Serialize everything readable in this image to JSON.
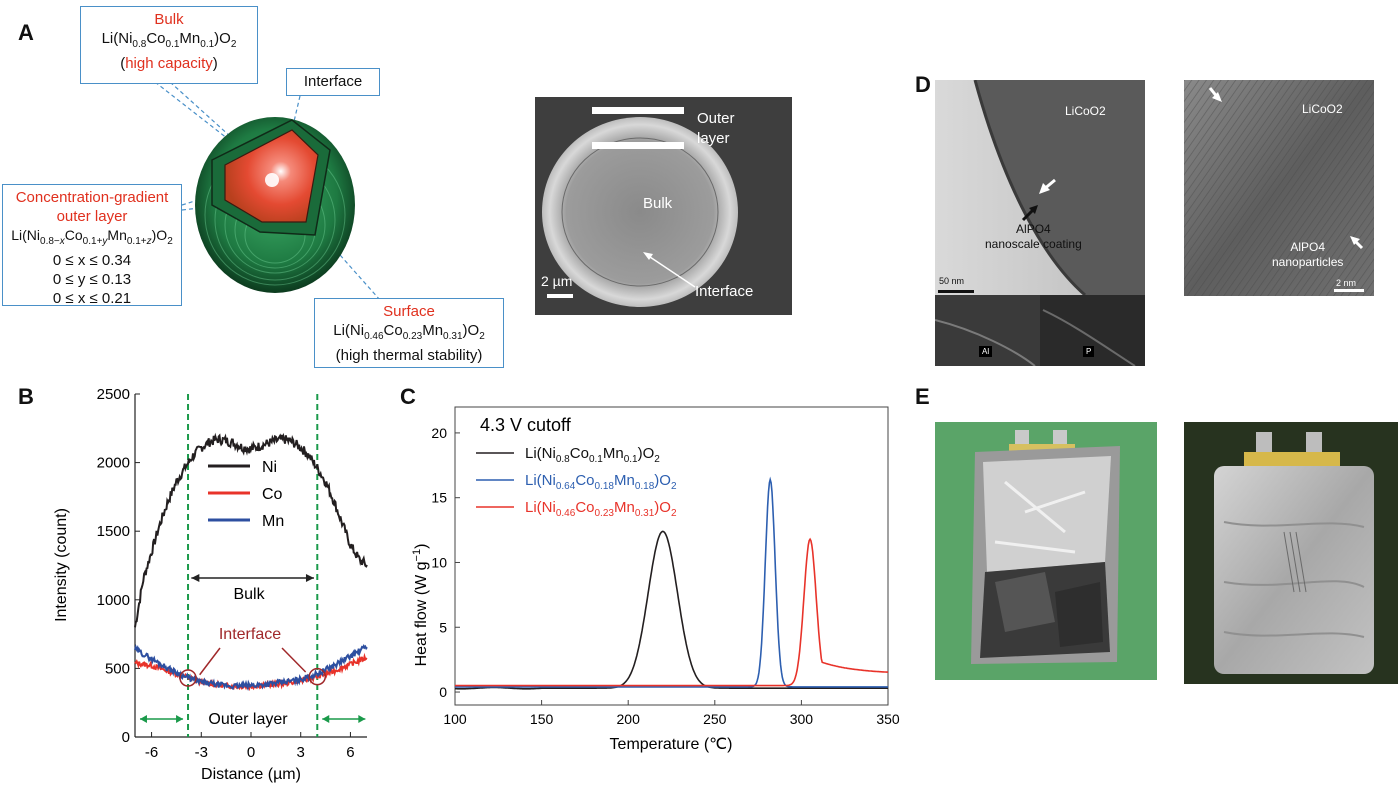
{
  "panels": {
    "A": "A",
    "B": "B",
    "C": "C",
    "D": "D",
    "E": "E"
  },
  "panelA": {
    "bulk": {
      "title": "Bulk",
      "formula": "Li(Ni0.8Co0.1Mn0.1)O2",
      "note_open": "(",
      "note": "high capacity",
      "note_close": ")"
    },
    "interface_label": "Interface",
    "gradient": {
      "title1": "Concentration-gradient",
      "title2": "outer layer",
      "formula": "Li(Ni0.8−xCo0.1+yMn0.1+z)O2",
      "r1": "0 ≤ x ≤ 0.34",
      "r2": "0 ≤ y ≤ 0.13",
      "r3": "0 ≤ x ≤ 0.21"
    },
    "surface": {
      "title": "Surface",
      "formula": "Li(Ni0.46Co0.23Mn0.31)O2",
      "note": "(high thermal stability)"
    },
    "sem": {
      "outer1": "Outer",
      "outer2": "layer",
      "bulk": "Bulk",
      "interface": "Interface",
      "scale": "2 µm"
    }
  },
  "panelD": {
    "left_top": "LiCoO2",
    "coating1": "AlPO4",
    "coating2": "nanoscale coating",
    "scale_left": "50 nm",
    "al": "Al",
    "p": "P",
    "right_top": "LiCoO2",
    "np1": "AlPO4",
    "np2": "nanoparticles",
    "scale_right": "2 nm"
  },
  "chart_data": [
    {
      "type": "line",
      "panel": "B",
      "xlabel": "Distance (µm)",
      "ylabel": "Intensity (count)",
      "xlim": [
        -7,
        7
      ],
      "ylim": [
        0,
        2500
      ],
      "xticks": [
        -6,
        -3,
        0,
        3,
        6
      ],
      "xtick_labels": [
        "-6",
        "-3",
        "0",
        "3",
        "6"
      ],
      "yticks": [
        0,
        500,
        1000,
        1500,
        2000,
        2500
      ],
      "ytick_labels": [
        "0",
        "500",
        "1000",
        "1500",
        "2000",
        "2500"
      ],
      "legend": [
        "Ni",
        "Co",
        "Mn"
      ],
      "colors": {
        "Ni": "#231f20",
        "Co": "#e8332a",
        "Mn": "#2d4fa0",
        "guide": "#1a9a4a",
        "annot": "#a0282a"
      },
      "boundaries": [
        -3.8,
        4.0
      ],
      "annotations": {
        "bulk": "Bulk",
        "interface": "Interface",
        "outer": "Outer layer"
      },
      "series": [
        {
          "name": "Ni",
          "x": [
            -7,
            -6.5,
            -6,
            -5.5,
            -5,
            -4.5,
            -4,
            -3.5,
            -3,
            -2.5,
            -2,
            -1.5,
            -1,
            -0.5,
            0,
            0.5,
            1,
            1.5,
            2,
            2.5,
            3,
            3.5,
            4,
            4.5,
            5,
            5.5,
            6,
            6.5,
            7
          ],
          "y": [
            800,
            1150,
            1350,
            1550,
            1720,
            1860,
            1960,
            2050,
            2110,
            2150,
            2170,
            2160,
            2140,
            2110,
            2100,
            2120,
            2140,
            2160,
            2170,
            2150,
            2110,
            2050,
            1960,
            1860,
            1720,
            1560,
            1400,
            1300,
            1250
          ]
        },
        {
          "name": "Co",
          "x": [
            -7,
            -6,
            -5,
            -4,
            -3,
            -2,
            -1,
            0,
            1,
            2,
            3,
            4,
            5,
            6,
            7
          ],
          "y": [
            540,
            520,
            480,
            440,
            400,
            380,
            370,
            370,
            380,
            390,
            410,
            440,
            480,
            530,
            580
          ]
        },
        {
          "name": "Mn",
          "x": [
            -7,
            -6,
            -5,
            -4,
            -3,
            -2,
            -1,
            0,
            1,
            2,
            3,
            4,
            5,
            6,
            7
          ],
          "y": [
            640,
            570,
            500,
            440,
            400,
            380,
            370,
            375,
            385,
            400,
            420,
            460,
            520,
            590,
            660
          ]
        }
      ]
    },
    {
      "type": "line",
      "panel": "C",
      "title": "4.3 V cutoff",
      "xlabel": "Temperature (℃)",
      "ylabel": "Heat flow (W g−1)",
      "xlim": [
        100,
        350
      ],
      "ylim": [
        -1,
        22
      ],
      "xticks": [
        100,
        150,
        200,
        250,
        300,
        350
      ],
      "xtick_labels": [
        "100",
        "150",
        "200",
        "250",
        "300",
        "350"
      ],
      "yticks": [
        0,
        5,
        10,
        15,
        20
      ],
      "ytick_labels": [
        "0",
        "5",
        "10",
        "15",
        "20"
      ],
      "legend": [
        "Li(Ni0.8Co0.1Mn0.1)O2",
        "Li(Ni0.64Co0.18Mn0.18)O2",
        "Li(Ni0.46Co0.23Mn0.31)O2"
      ],
      "colors": [
        "#231f20",
        "#2d5fb0",
        "#e8332a"
      ],
      "series": [
        {
          "name": "Li(Ni0.8Co0.1Mn0.1)O2",
          "peak_x": 220,
          "peak_y": 12.4,
          "width": 12,
          "base": 0.3
        },
        {
          "name": "Li(Ni0.64Co0.18Mn0.18)O2",
          "peak_x": 282,
          "peak_y": 16.4,
          "width": 4,
          "base": 0.4
        },
        {
          "name": "Li(Ni0.46Co0.23Mn0.31)O2",
          "peak_x": 305,
          "peak_y": 11.8,
          "width": 5,
          "base": 0.5
        }
      ]
    }
  ]
}
